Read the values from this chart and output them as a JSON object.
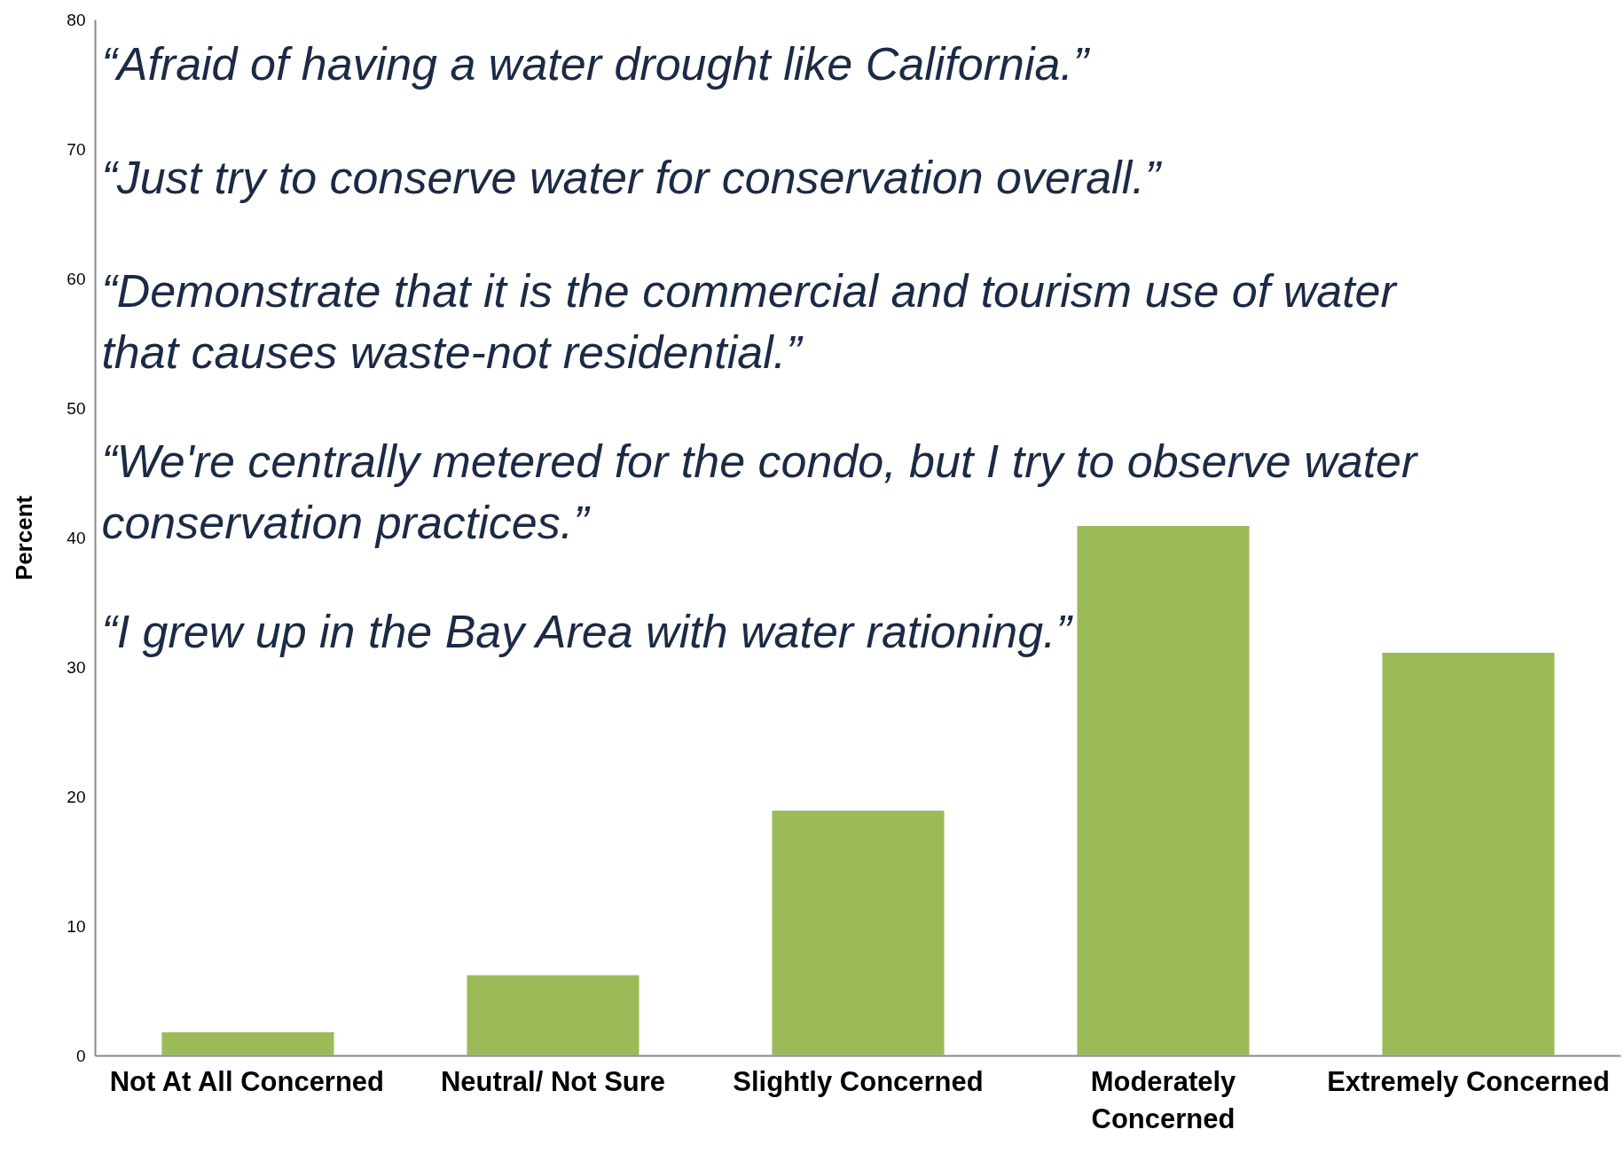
{
  "chart_data": {
    "type": "bar",
    "ylabel": "Percent",
    "categories": [
      "Not At All Concerned",
      "Neutral/ Not Sure",
      "Slightly Concerned",
      "Moderately\nConcerned",
      "Extremely Concerned"
    ],
    "values": [
      1.9,
      6.3,
      19.0,
      41.0,
      31.2
    ],
    "color": "#9bbb59",
    "ylim": [
      0,
      80
    ],
    "yticks": [
      0,
      10,
      20,
      30,
      40,
      50,
      60,
      70,
      80
    ],
    "grid": false,
    "annotations": [
      "“Afraid of having a water drought like California.”",
      "“Just try to conserve water for conservation overall.”",
      "“Demonstrate that it is the commercial and tourism use of water\nthat causes waste-not residential.”",
      "“We're centrally metered for the condo, but I try to observe water\nconservation practices.”",
      "“I grew up in the Bay Area with water rationing.”"
    ]
  }
}
